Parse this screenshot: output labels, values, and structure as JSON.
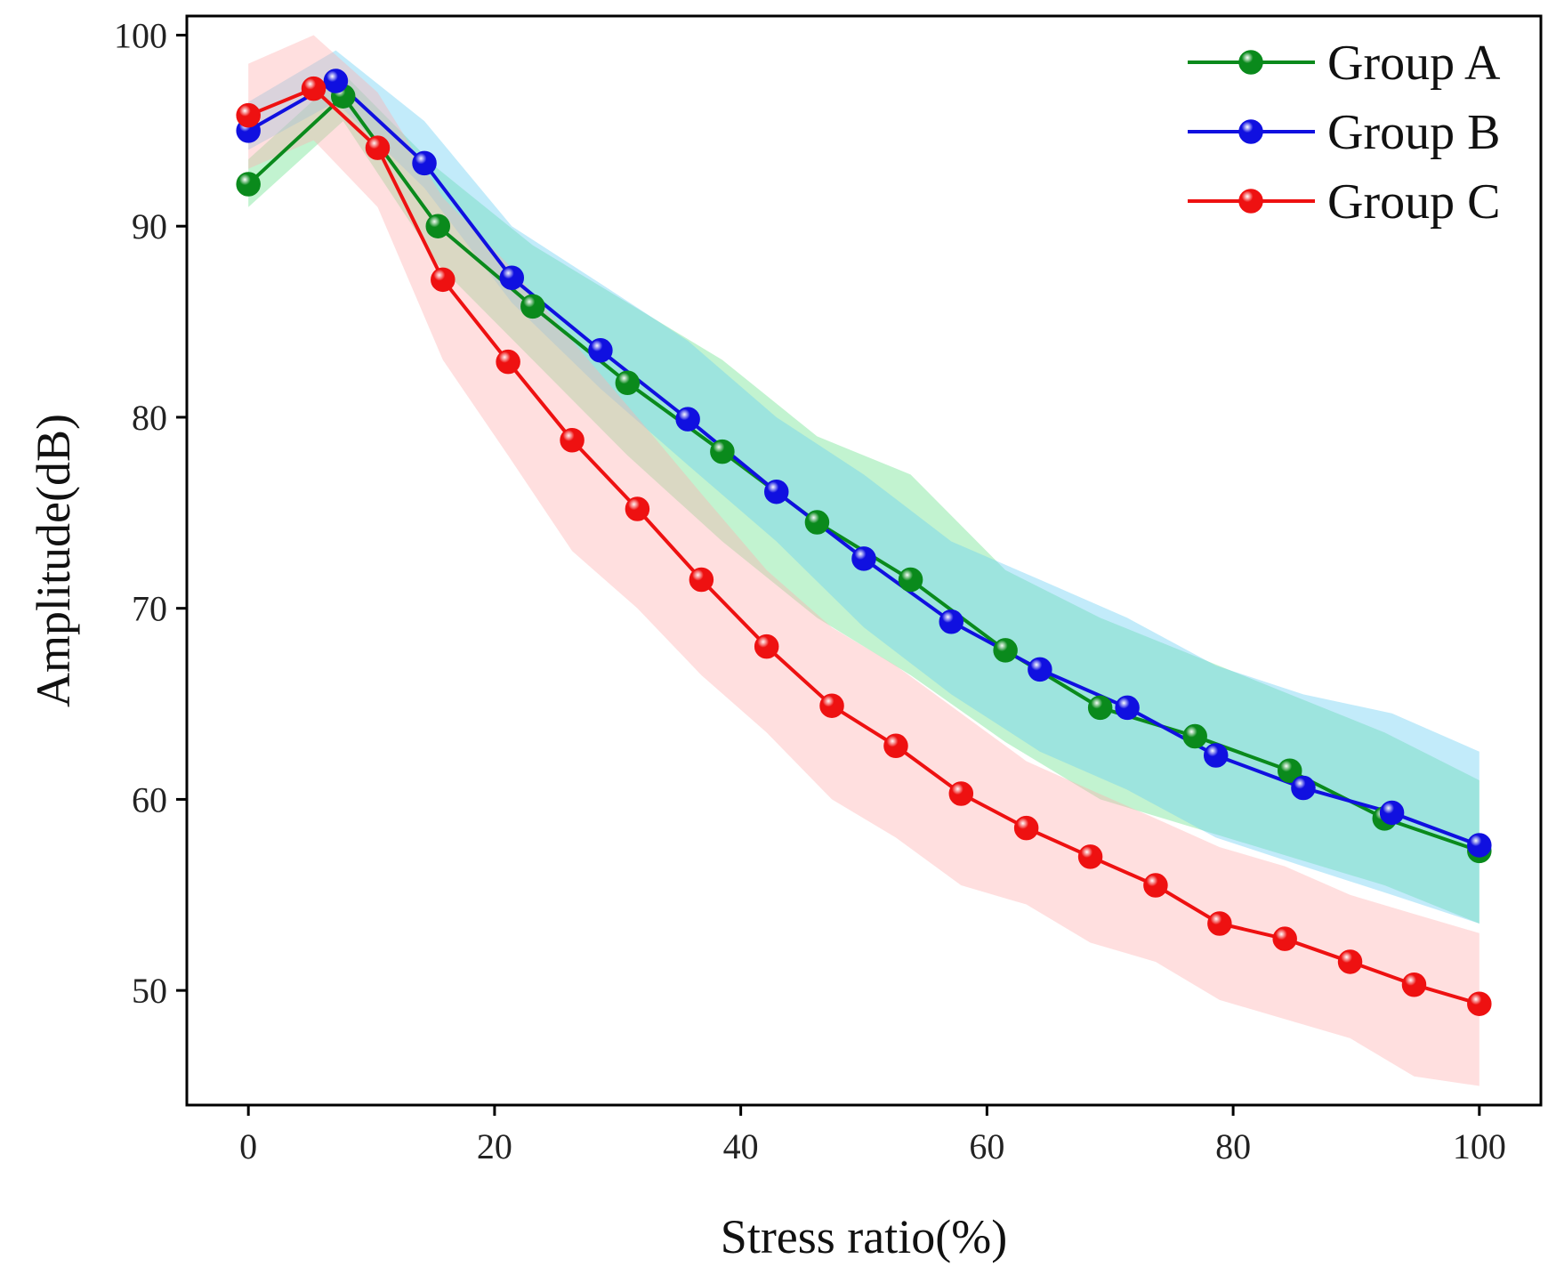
{
  "chart_data": {
    "type": "line",
    "title": "",
    "xlabel": "Stress ratio(%)",
    "ylabel": "Amplitude(dB)",
    "xlim": [
      -5,
      105
    ],
    "ylim": [
      44,
      101
    ],
    "xticks": [
      0,
      20,
      40,
      60,
      80,
      100
    ],
    "yticks": [
      50,
      60,
      70,
      80,
      90,
      100
    ],
    "grid": false,
    "legend_position": "top-right",
    "series": [
      {
        "name": "Group A",
        "color": "#0a8a1c",
        "band_color": "#66e08a",
        "x": [
          0,
          7.7,
          15.4,
          23.1,
          30.8,
          38.5,
          46.2,
          53.8,
          61.5,
          69.2,
          76.9,
          84.6,
          92.3,
          100
        ],
        "y": [
          92.2,
          96.8,
          90.0,
          85.8,
          81.8,
          78.2,
          74.5,
          71.5,
          67.8,
          64.8,
          63.3,
          61.5,
          59.0,
          57.3
        ],
        "upper": [
          93.5,
          98.0,
          93.0,
          89.0,
          86.0,
          83.0,
          79.0,
          77.0,
          72.0,
          69.5,
          67.5,
          65.5,
          63.5,
          61.0
        ],
        "lower": [
          91.0,
          95.5,
          88.0,
          83.0,
          78.0,
          73.5,
          69.5,
          66.5,
          63.0,
          60.0,
          58.5,
          57.0,
          55.5,
          53.5
        ]
      },
      {
        "name": "Group B",
        "color": "#1010e0",
        "band_color": "#66cdf2",
        "x": [
          0,
          7.1,
          14.3,
          21.4,
          28.6,
          35.7,
          42.9,
          50.0,
          57.1,
          64.3,
          71.4,
          78.6,
          85.7,
          92.9,
          100
        ],
        "y": [
          95.0,
          97.6,
          93.3,
          87.3,
          83.5,
          79.9,
          76.1,
          72.6,
          69.3,
          66.8,
          64.8,
          62.3,
          60.6,
          59.3,
          57.6
        ],
        "upper": [
          96.5,
          99.2,
          95.5,
          90.0,
          87.0,
          84.0,
          80.0,
          77.0,
          73.5,
          71.5,
          69.5,
          67.0,
          65.5,
          64.5,
          62.5
        ],
        "lower": [
          94.0,
          96.5,
          92.0,
          86.0,
          81.5,
          77.5,
          73.5,
          69.0,
          65.5,
          62.5,
          60.5,
          58.0,
          56.5,
          55.0,
          53.5
        ]
      },
      {
        "name": "Group C",
        "color": "#ee1111",
        "band_color": "#ffb0b0",
        "x": [
          0,
          5.3,
          10.5,
          15.8,
          21.1,
          26.3,
          31.6,
          36.8,
          42.1,
          47.4,
          52.6,
          57.9,
          63.2,
          68.4,
          73.7,
          78.9,
          84.2,
          89.5,
          94.7,
          100
        ],
        "y": [
          95.8,
          97.2,
          94.1,
          87.2,
          82.9,
          78.8,
          75.2,
          71.5,
          68.0,
          64.9,
          62.8,
          60.3,
          58.5,
          57.0,
          55.5,
          53.5,
          52.7,
          51.5,
          50.3,
          49.3
        ],
        "upper": [
          98.5,
          100.0,
          97.0,
          91.5,
          88.0,
          84.0,
          80.0,
          76.0,
          72.0,
          69.0,
          67.0,
          64.5,
          62.0,
          60.5,
          59.0,
          57.5,
          56.5,
          55.0,
          54.0,
          53.0
        ],
        "lower": [
          93.0,
          94.5,
          91.0,
          83.0,
          78.0,
          73.0,
          70.0,
          66.5,
          63.5,
          60.0,
          58.0,
          55.5,
          54.5,
          52.5,
          51.5,
          49.5,
          48.5,
          47.5,
          45.5,
          45.0
        ]
      }
    ]
  }
}
